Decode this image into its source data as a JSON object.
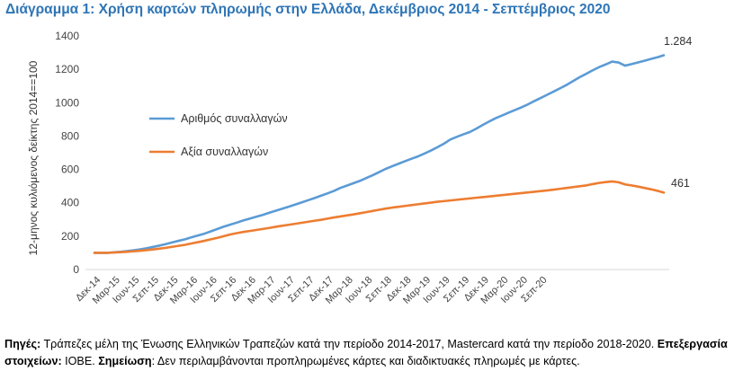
{
  "title": "Διάγραμμα 1: Χρήση καρτών πληρωμής στην Ελλάδα, Δεκέμβριος 2014 - Σεπτέμβριος 2020",
  "chart_data": {
    "type": "line",
    "ylabel": "12-μηνος κυλιόμενος δείκτης 2014==100",
    "ylim": [
      0,
      1400
    ],
    "yticks": [
      0,
      200,
      400,
      600,
      800,
      1000,
      1200,
      1400
    ],
    "grid": false,
    "legend_position": "upper-left inside",
    "x_tick_labels": [
      "Δεκ-14",
      "Μαρ-15",
      "Ιουν-15",
      "Σεπ-15",
      "Δεκ-15",
      "Μαρ-16",
      "Ιουν-16",
      "Σεπ-16",
      "Δεκ-16",
      "Μαρ-17",
      "Ιουν-17",
      "Σεπ-17",
      "Δεκ-17",
      "Μαρ-18",
      "Ιουν-18",
      "Σεπ-18",
      "Δεκ-18",
      "Μαρ-19",
      "Ιουν-19",
      "Σεπ-19",
      "Δεκ-19",
      "Μαρ-20",
      "Ιουν-20",
      "Σεπ-20"
    ],
    "series": [
      {
        "name": "Αριθμός συναλλαγών",
        "color": "#5b9bd5",
        "end_label": "1.284",
        "values": [
          100,
          100,
          100,
          103,
          106,
          110,
          115,
          120,
          127,
          135,
          143,
          152,
          162,
          172,
          181,
          193,
          204,
          215,
          229,
          243,
          257,
          269,
          281,
          294,
          305,
          316,
          327,
          340,
          352,
          364,
          376,
          389,
          402,
          415,
          428,
          442,
          456,
          471,
          489,
          503,
          517,
          531,
          548,
          565,
          584,
          603,
          619,
          634,
          649,
          664,
          678,
          695,
          713,
          733,
          754,
          779,
          795,
          810,
          824,
          844,
          866,
          887,
          907,
          923,
          940,
          956,
          972,
          990,
          1010,
          1029,
          1048,
          1067,
          1087,
          1107,
          1130,
          1153,
          1173,
          1194,
          1213,
          1229,
          1246,
          1241,
          1222,
          1231,
          1241,
          1251,
          1262,
          1272,
          1284
        ]
      },
      {
        "name": "Αξία συναλλαγών",
        "color": "#ed7d31",
        "end_label": "461",
        "values": [
          100,
          100,
          100,
          102,
          104,
          106,
          109,
          112,
          116,
          120,
          125,
          130,
          136,
          142,
          148,
          156,
          164,
          172,
          181,
          190,
          200,
          210,
          218,
          225,
          231,
          237,
          243,
          249,
          256,
          262,
          268,
          274,
          280,
          286,
          292,
          298,
          305,
          312,
          318,
          324,
          330,
          337,
          344,
          351,
          358,
          365,
          371,
          376,
          381,
          386,
          391,
          396,
          401,
          406,
          410,
          414,
          418,
          422,
          426,
          430,
          434,
          438,
          442,
          446,
          450,
          454,
          458,
          462,
          466,
          470,
          474,
          479,
          484,
          489,
          494,
          499,
          504,
          512,
          519,
          524,
          528,
          523,
          510,
          504,
          497,
          489,
          481,
          472,
          461
        ]
      }
    ]
  },
  "notes": {
    "sources_label": "Πηγές:",
    "sources_text": " Τράπεζες μέλη της Ένωσης Ελληνικών Τραπεζών κατά την περίοδο 2014-2017, Mastercard κατά την περίοδο 2018-2020. ",
    "processing_label": "Επεξεργασία στοιχείων:",
    "processing_text": " ΙΟΒΕ. ",
    "note_label": "Σημείωση",
    "note_text": ": Δεν περιλαμβάνονται προπληρωμένες κάρτες και διαδικτυακές πληρωμές με κάρτες."
  }
}
